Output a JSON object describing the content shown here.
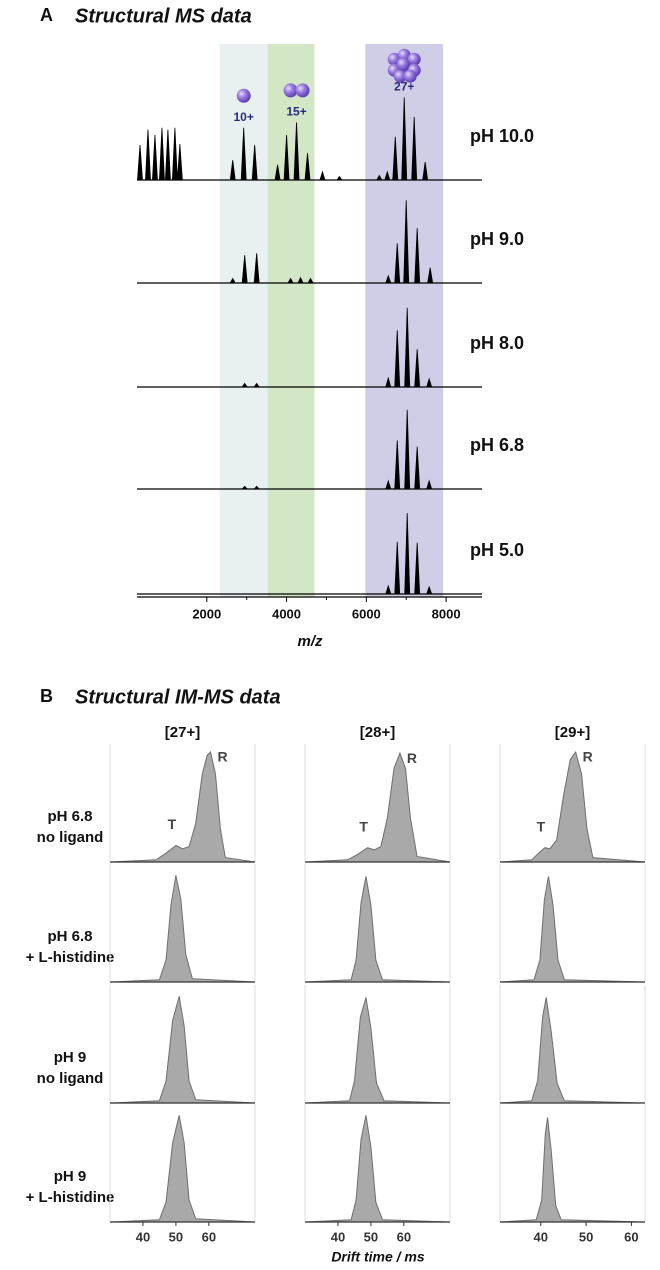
{
  "chart_data": [
    {
      "type": "spectrum",
      "panel_label": "A",
      "title": "Structural MS data",
      "xlabel": "m/z",
      "xlim": [
        250,
        8900
      ],
      "xticks": [
        2000,
        4000,
        6000,
        8000
      ],
      "ylim": [
        0,
        100
      ],
      "color": "#000000",
      "bands": [
        {
          "from": 2325,
          "to": 3525,
          "color": "#e8f0f1",
          "label": "10+"
        },
        {
          "from": 3525,
          "to": 4700,
          "color": "#d3e7c7",
          "label": "15+"
        },
        {
          "from": 5975,
          "to": 7925,
          "color": "#d0cee6",
          "label": "27+"
        }
      ],
      "series": [
        {
          "name": "pH 10.0",
          "x": [
            325,
            525,
            700,
            875,
            1025,
            1200,
            1325,
            2650,
            2925,
            3200,
            3775,
            4000,
            4250,
            4525,
            4900,
            5325,
            6325,
            6525,
            6725,
            6950,
            7200,
            7475
          ],
          "values": [
            39,
            56,
            50,
            58,
            56,
            58,
            40,
            22,
            58,
            39,
            17,
            50,
            64,
            30,
            9,
            4,
            5,
            9,
            48,
            92,
            70,
            20
          ]
        },
        {
          "name": "pH 9.0",
          "x": [
            2650,
            2950,
            3250,
            4100,
            4350,
            4600,
            6550,
            6775,
            7000,
            7275,
            7600
          ],
          "values": [
            5,
            31,
            33,
            5,
            6,
            5,
            8,
            44,
            92,
            61,
            17
          ]
        },
        {
          "name": "pH 8.0",
          "x": [
            2950,
            3250,
            6550,
            6775,
            7025,
            7275,
            7575
          ],
          "values": [
            4,
            4,
            10,
            63,
            88,
            42,
            9
          ]
        },
        {
          "name": "pH 6.8",
          "x": [
            2950,
            3250,
            6550,
            6775,
            7025,
            7275,
            7575
          ],
          "values": [
            3,
            3,
            9,
            54,
            88,
            47,
            9
          ]
        },
        {
          "name": "pH 5.0",
          "x": [
            6550,
            6775,
            7025,
            7275,
            7575
          ],
          "values": [
            9,
            58,
            90,
            57,
            8
          ]
        }
      ]
    },
    {
      "type": "area",
      "panel_label": "B",
      "title": "Structural IM-MS data",
      "xlabel": "Drift time / ms",
      "ylim": [
        0,
        100
      ],
      "color": "#a9a9a9",
      "columns": [
        {
          "title": "[27+]",
          "xlim": [
            30,
            74
          ],
          "xticks": [
            40,
            50,
            60
          ]
        },
        {
          "title": "[28+]",
          "xlim": [
            30,
            74
          ],
          "xticks": [
            40,
            50,
            60
          ]
        },
        {
          "title": "[29+]",
          "xlim": [
            31,
            63
          ],
          "xticks": [
            40,
            50,
            60
          ]
        }
      ],
      "rows": [
        {
          "label": [
            "pH 6.8",
            "no ligand"
          ]
        },
        {
          "label": [
            "pH 6.8",
            "+ L-histidine"
          ]
        },
        {
          "label": [
            "pH 9",
            "no ligand"
          ]
        },
        {
          "label": [
            "pH 9",
            "+ L-histidine"
          ]
        }
      ],
      "panels": [
        [
          {
            "x": [
              30,
              44,
              47,
              50,
              52,
              54,
              56,
              58,
              59.5,
              60.5,
              62,
              63.5,
              65,
              74
            ],
            "values": [
              0,
              2,
              8,
              15,
              12,
              14,
              35,
              80,
              97,
              100,
              80,
              30,
              4,
              0
            ],
            "labels": [
              {
                "text": "T",
                "x": 50
              },
              {
                "text": "R",
                "x": 60.5
              }
            ]
          },
          {
            "x": [
              30,
              43,
              46,
              49,
              51,
              53,
              55,
              57,
              58.8,
              60.5,
              62,
              64,
              74
            ],
            "values": [
              0,
              2,
              7,
              13,
              11,
              14,
              40,
              85,
              99,
              85,
              40,
              5,
              0
            ],
            "labels": [
              {
                "text": "T",
                "x": 49
              },
              {
                "text": "R",
                "x": 58.8
              }
            ]
          },
          {
            "x": [
              31,
              38,
              39.5,
              40.9,
              42,
              43.5,
              45,
              46.5,
              47.7,
              49,
              50.2,
              51.5,
              63
            ],
            "values": [
              0,
              2,
              8,
              13,
              12,
              20,
              60,
              93,
              100,
              80,
              30,
              4,
              0
            ],
            "labels": [
              {
                "text": "T",
                "x": 40.9
              },
              {
                "text": "R",
                "x": 47.7
              }
            ]
          }
        ],
        [
          {
            "x": [
              30,
              45,
              47,
              48.5,
              50,
              51.5,
              53,
              55,
              74
            ],
            "values": [
              0,
              2,
              20,
              70,
              97,
              75,
              25,
              3,
              0
            ]
          },
          {
            "x": [
              30,
              44,
              45.5,
              47,
              48.5,
              50,
              51.5,
              53.5,
              74
            ],
            "values": [
              0,
              2,
              20,
              72,
              96,
              70,
              20,
              2,
              0
            ]
          },
          {
            "x": [
              31,
              38.5,
              39.8,
              40.8,
              41.7,
              42.7,
              43.8,
              45.2,
              63
            ],
            "values": [
              0,
              2,
              20,
              75,
              96,
              70,
              20,
              2,
              0
            ]
          }
        ],
        [
          {
            "x": [
              30,
              45,
              47,
              49,
              51,
              52.5,
              54,
              56,
              74
            ],
            "values": [
              0,
              2,
              20,
              75,
              97,
              70,
              20,
              3,
              0
            ]
          },
          {
            "x": [
              30,
              43.5,
              45,
              46.8,
              48.5,
              50,
              51.7,
              54,
              74
            ],
            "values": [
              0,
              2,
              20,
              78,
              96,
              68,
              18,
              2,
              0
            ]
          },
          {
            "x": [
              31,
              38,
              39.3,
              40.4,
              41.2,
              42.3,
              43.6,
              45.2,
              63
            ],
            "values": [
              0,
              2,
              20,
              78,
              96,
              65,
              18,
              2,
              0
            ]
          }
        ],
        [
          {
            "x": [
              30,
              45,
              47,
              49,
              51,
              52.5,
              54,
              56,
              74
            ],
            "values": [
              0,
              2,
              18,
              72,
              97,
              72,
              20,
              3,
              0
            ]
          },
          {
            "x": [
              30,
              44,
              45.5,
              47,
              48.5,
              50,
              51.5,
              53.5,
              74
            ],
            "values": [
              0,
              2,
              20,
              75,
              97,
              68,
              18,
              2,
              0
            ]
          },
          {
            "x": [
              31,
              39,
              40.2,
              41,
              41.5,
              42.3,
              43.3,
              44.5,
              63
            ],
            "values": [
              0,
              2,
              20,
              80,
              95,
              65,
              15,
              2,
              0
            ]
          }
        ]
      ]
    }
  ]
}
